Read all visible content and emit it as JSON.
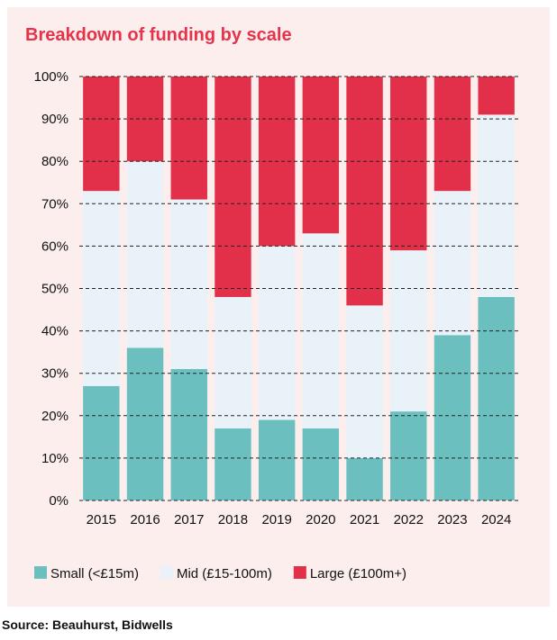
{
  "chart_data": {
    "type": "bar",
    "stacked": true,
    "title": "Breakdown of funding by scale",
    "categories": [
      "2015",
      "2016",
      "2017",
      "2018",
      "2019",
      "2020",
      "2021",
      "2022",
      "2023",
      "2024"
    ],
    "series": [
      {
        "name": "Small (<£15m)",
        "color": "#6bc0bf",
        "values": [
          27,
          36,
          31,
          17,
          19,
          17,
          10,
          21,
          39,
          48
        ]
      },
      {
        "name": "Mid (£15-100m)",
        "color": "#e8f2f8",
        "values": [
          46,
          44,
          40,
          31,
          41,
          46,
          36,
          38,
          34,
          43
        ]
      },
      {
        "name": "Large (£100m+)",
        "color": "#e3304a",
        "values": [
          27,
          20,
          29,
          52,
          40,
          37,
          54,
          41,
          27,
          9
        ]
      }
    ],
    "yticks": [
      "0%",
      "10%",
      "20%",
      "30%",
      "40%",
      "50%",
      "60%",
      "70%",
      "80%",
      "90%",
      "100%"
    ],
    "ylim": [
      0,
      100
    ],
    "xlabel": "",
    "ylabel": "",
    "grid": true,
    "legend_position": "bottom-left"
  },
  "source_label": "Source: Beauhurst, Bidwells"
}
